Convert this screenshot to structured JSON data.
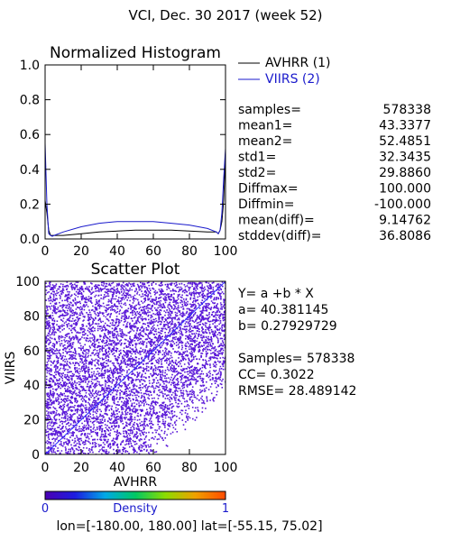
{
  "title": "VCI,  Dec. 30 2017 (week 52)",
  "colors": {
    "avhrr": "#000000",
    "viirs": "#1a1acc",
    "scatter": "#5a18d8",
    "fit_line": "#2c2cff",
    "colorbar": [
      "#4b00b4",
      "#1d1de0",
      "#00a9e6",
      "#00c864",
      "#8cdc00",
      "#f0a000",
      "#ff4b00"
    ]
  },
  "chart_data": [
    {
      "type": "line",
      "title": "Normalized Histogram",
      "xlim": [
        0,
        100
      ],
      "ylim": [
        0,
        1.0
      ],
      "xticks": [
        "0",
        "20",
        "40",
        "60",
        "80",
        "100"
      ],
      "yticks": [
        "0.0",
        "0.2",
        "0.4",
        "0.6",
        "0.8",
        "1.0"
      ],
      "legend_position": "right",
      "series": [
        {
          "name": "AVHRR (1)",
          "x": [
            0,
            1,
            2,
            3,
            4,
            5,
            10,
            20,
            30,
            40,
            50,
            60,
            70,
            80,
            90,
            95,
            96,
            97,
            98,
            99,
            100
          ],
          "y": [
            0.22,
            0.15,
            0.05,
            0.02,
            0.02,
            0.02,
            0.02,
            0.03,
            0.04,
            0.045,
            0.05,
            0.05,
            0.05,
            0.045,
            0.04,
            0.04,
            0.03,
            0.05,
            0.1,
            0.22,
            0.5
          ]
        },
        {
          "name": "VIIRS (2)",
          "x": [
            0,
            1,
            2,
            3,
            4,
            5,
            10,
            20,
            30,
            40,
            50,
            60,
            70,
            80,
            90,
            95,
            96,
            97,
            98,
            99,
            100
          ],
          "y": [
            0.55,
            0.2,
            0.03,
            0.02,
            0.015,
            0.02,
            0.04,
            0.07,
            0.09,
            0.1,
            0.1,
            0.1,
            0.09,
            0.08,
            0.06,
            0.04,
            0.03,
            0.05,
            0.15,
            0.35,
            0.52
          ]
        }
      ]
    },
    {
      "type": "scatter",
      "title": "Scatter Plot",
      "xlabel": "AVHRR",
      "ylabel": "VIIRS",
      "xlim": [
        0,
        100
      ],
      "ylim": [
        0,
        100
      ],
      "xticks": [
        "0",
        "20",
        "40",
        "60",
        "80",
        "100"
      ],
      "yticks": [
        "0",
        "20",
        "40",
        "60",
        "80",
        "100"
      ],
      "samples": 578338,
      "fit": {
        "a": 40.381145,
        "b": 0.27929729
      },
      "reference_line": {
        "x": [
          0,
          100
        ],
        "y": [
          0,
          100
        ]
      }
    }
  ],
  "stats": [
    {
      "label": "samples=",
      "value": "578338"
    },
    {
      "label": "mean1=",
      "value": "43.3377"
    },
    {
      "label": "mean2=",
      "value": "52.4851"
    },
    {
      "label": "std1=",
      "value": "32.3435"
    },
    {
      "label": "std2=",
      "value": "29.8860"
    },
    {
      "label": "Diffmax=",
      "value": "100.000"
    },
    {
      "label": "Diffmin=",
      "value": "-100.000"
    },
    {
      "label": "mean(diff)=",
      "value": "9.14762"
    },
    {
      "label": "stddev(diff)=",
      "value": "36.8086"
    }
  ],
  "regression": {
    "equation": "Y= a +b * X",
    "a_text": "a= 40.381145",
    "b_text": "b= 0.27929729",
    "samples_text": "Samples= 578338",
    "cc_text": "CC=  0.3022",
    "rmse_text": "RMSE= 28.489142"
  },
  "colorbar": {
    "min": "0",
    "max": "1",
    "label": "Density"
  },
  "footer": "lon=[-180.00, 180.00] lat=[-55.15, 75.02]"
}
